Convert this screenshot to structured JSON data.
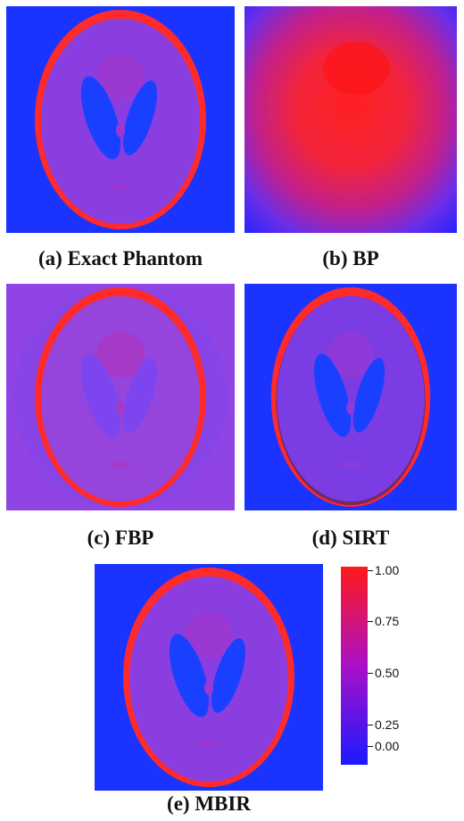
{
  "panels": [
    {
      "key": "a",
      "caption": "(a) Exact Phantom",
      "variant": "exact"
    },
    {
      "key": "b",
      "caption": "(b) BP",
      "variant": "bp"
    },
    {
      "key": "c",
      "caption": "(c) FBP",
      "variant": "fbp"
    },
    {
      "key": "d",
      "caption": "(d) SIRT",
      "variant": "sirt"
    },
    {
      "key": "e",
      "caption": "(e) MBIR",
      "variant": "mbir"
    }
  ],
  "colorbar": {
    "ticks": [
      "1.00",
      "0.75",
      "0.50",
      "0.25",
      "0.00"
    ],
    "colors": {
      "low": "#1a1aff",
      "mid": "#aa10c8",
      "high": "#ff1a1a"
    }
  },
  "colors": {
    "background_blue": "#1a33ff",
    "body_purple": "#8a3ee0",
    "skull_red": "#ff2a2a",
    "inner_purple": "#9b38d2"
  }
}
